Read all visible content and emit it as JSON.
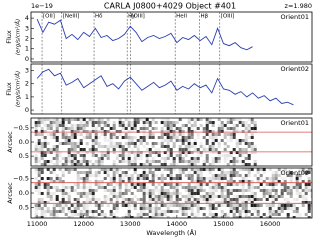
{
  "chart_data": [
    {
      "type": "line",
      "title": "CARLA J0800+4029 Object #401",
      "redshift": "z=1.980",
      "multiplier": "1e−19",
      "panel_label": "Orient01",
      "ylabel": [
        "Flux",
        "(erg/s/cm²/Å)"
      ],
      "lines": [
        {
          "label": "[OII]",
          "wavelength": 11107
        },
        {
          "label": "[NeIII]",
          "wavelength": 11530
        },
        {
          "label": "Hδ",
          "wavelength": 12223
        },
        {
          "label": "Hγ",
          "wavelength": 12934
        },
        {
          "label": "[OIII]",
          "wavelength": 13002
        },
        {
          "label": "HeII",
          "wavelength": 13964
        },
        {
          "label": "Hβ",
          "wavelength": 14487
        },
        {
          "label": "[OIII]",
          "wavelength": 14921
        }
      ],
      "x": [
        11000,
        11125,
        11250,
        11375,
        11500,
        11625,
        11750,
        11875,
        12000,
        12125,
        12250,
        12375,
        12500,
        12625,
        12750,
        12875,
        13000,
        13125,
        13250,
        13375,
        13500,
        13625,
        13750,
        13875,
        14000,
        14125,
        14250,
        14375,
        14500,
        14625,
        14750,
        14875,
        15000,
        15125,
        15250,
        15375,
        15500,
        15625,
        15750,
        15875,
        16000,
        16125,
        16250,
        16375,
        16500
      ],
      "series": [
        {
          "color": "#2b3fb0",
          "values": [
            3.9,
            2.6,
            3.6,
            3.4,
            3.8,
            2.0,
            2.4,
            1.9,
            2.6,
            2.2,
            3.0,
            2.1,
            2.3,
            1.8,
            2.0,
            2.4,
            3.2,
            2.6,
            1.7,
            2.1,
            2.3,
            2.0,
            2.2,
            2.5,
            1.6,
            2.1,
            1.9,
            2.3,
            1.8,
            2.2,
            1.4,
            3.0,
            1.5,
            1.3,
            1.6,
            1.1,
            0.9,
            1.2,
            null,
            null,
            null,
            null,
            null,
            null,
            null
          ]
        }
      ],
      "xlim": [
        10870,
        16900
      ],
      "ylim": [
        -0.3,
        4.6
      ],
      "yticks": [
        0,
        1,
        2,
        3,
        4
      ]
    },
    {
      "type": "line",
      "panel_label": "Orient02",
      "ylabel": [
        "Flux",
        "(erg/s/cm²/Å)"
      ],
      "x": [
        11000,
        11125,
        11250,
        11375,
        11500,
        11625,
        11750,
        11875,
        12000,
        12125,
        12250,
        12375,
        12500,
        12625,
        12750,
        12875,
        13000,
        13125,
        13250,
        13375,
        13500,
        13625,
        13750,
        13875,
        14000,
        14125,
        14250,
        14375,
        14500,
        14625,
        14750,
        14875,
        15000,
        15125,
        15250,
        15375,
        15500,
        15625,
        15750,
        15875,
        16000,
        16125,
        16250,
        16375,
        16500
      ],
      "series": [
        {
          "color": "#2b3fb0",
          "values": [
            2.4,
            2.9,
            3.1,
            2.6,
            2.8,
            1.9,
            2.1,
            2.4,
            1.7,
            2.0,
            2.3,
            2.6,
            1.8,
            2.0,
            1.6,
            2.2,
            2.5,
            2.0,
            1.5,
            1.8,
            2.1,
            1.7,
            1.9,
            2.2,
            1.5,
            1.8,
            1.6,
            2.0,
            1.7,
            1.9,
            1.3,
            2.4,
            1.6,
            1.5,
            1.2,
            1.4,
            1.0,
            1.3,
            0.9,
            1.1,
            0.7,
            0.9,
            0.5,
            0.6,
            0.4
          ]
        }
      ],
      "xlim": [
        10870,
        16900
      ],
      "ylim": [
        -0.3,
        3.5
      ],
      "yticks": [
        0,
        1,
        2,
        3
      ]
    },
    {
      "type": "image",
      "panel_label": "Orient01",
      "ylabel": "Arcsec",
      "xlim": [
        10870,
        16900
      ],
      "coverage": [
        10950,
        15700
      ],
      "ylim": [
        -0.85,
        0.85
      ],
      "yticks": [
        {
          "value": -0.5,
          "label": "−0.5"
        },
        {
          "value": 0,
          "label": "0.0"
        },
        0.5
      ],
      "aperture": [
        -0.35,
        0.35
      ],
      "aperture_color": "#d9534f"
    },
    {
      "type": "image",
      "panel_label": "Orient02",
      "ylabel": "Arcsec",
      "xlabel": "Wavelength (Å)",
      "xlim": [
        10870,
        16900
      ],
      "coverage": [
        10950,
        16900
      ],
      "ylim": [
        -0.85,
        0.85
      ],
      "yticks": [
        {
          "value": -0.5,
          "label": "−0.5"
        },
        {
          "value": 0,
          "label": "0.0"
        },
        0.5
      ],
      "aperture": [
        -0.35,
        0.35
      ],
      "aperture_color": "#d9534f",
      "xticks": [
        11000,
        12000,
        13000,
        14000,
        15000,
        16000
      ]
    }
  ]
}
